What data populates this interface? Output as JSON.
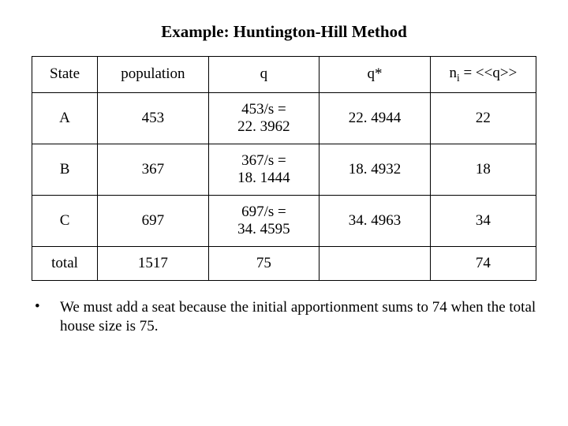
{
  "title": "Example: Huntington-Hill Method",
  "table": {
    "headers": {
      "state": "State",
      "population": "population",
      "q": "q",
      "qstar": "q*",
      "ni_prefix": "n",
      "ni_sub": "i",
      "ni_suffix": " = <<q>>"
    },
    "rows": [
      {
        "state": "A",
        "population": "453",
        "q_line1": "453/s =",
        "q_line2": "22. 3962",
        "qstar": "22. 4944",
        "ni": "22"
      },
      {
        "state": "B",
        "population": "367",
        "q_line1": "367/s =",
        "q_line2": "18. 1444",
        "qstar": "18. 4932",
        "ni": "18"
      },
      {
        "state": "C",
        "population": "697",
        "q_line1": "697/s =",
        "q_line2": "34. 4595",
        "qstar": "34. 4963",
        "ni": "34"
      }
    ],
    "total": {
      "label": "total",
      "population": "1517",
      "q": "75",
      "qstar": "",
      "ni": "74"
    }
  },
  "note": {
    "bullet": "•",
    "text": "We must add a seat because the initial apportionment sums to 74 when the total house size is 75."
  },
  "style": {
    "background_color": "#ffffff",
    "text_color": "#000000",
    "border_color": "#000000",
    "font_family": "Times New Roman",
    "title_fontsize": 21,
    "cell_fontsize": 19
  }
}
